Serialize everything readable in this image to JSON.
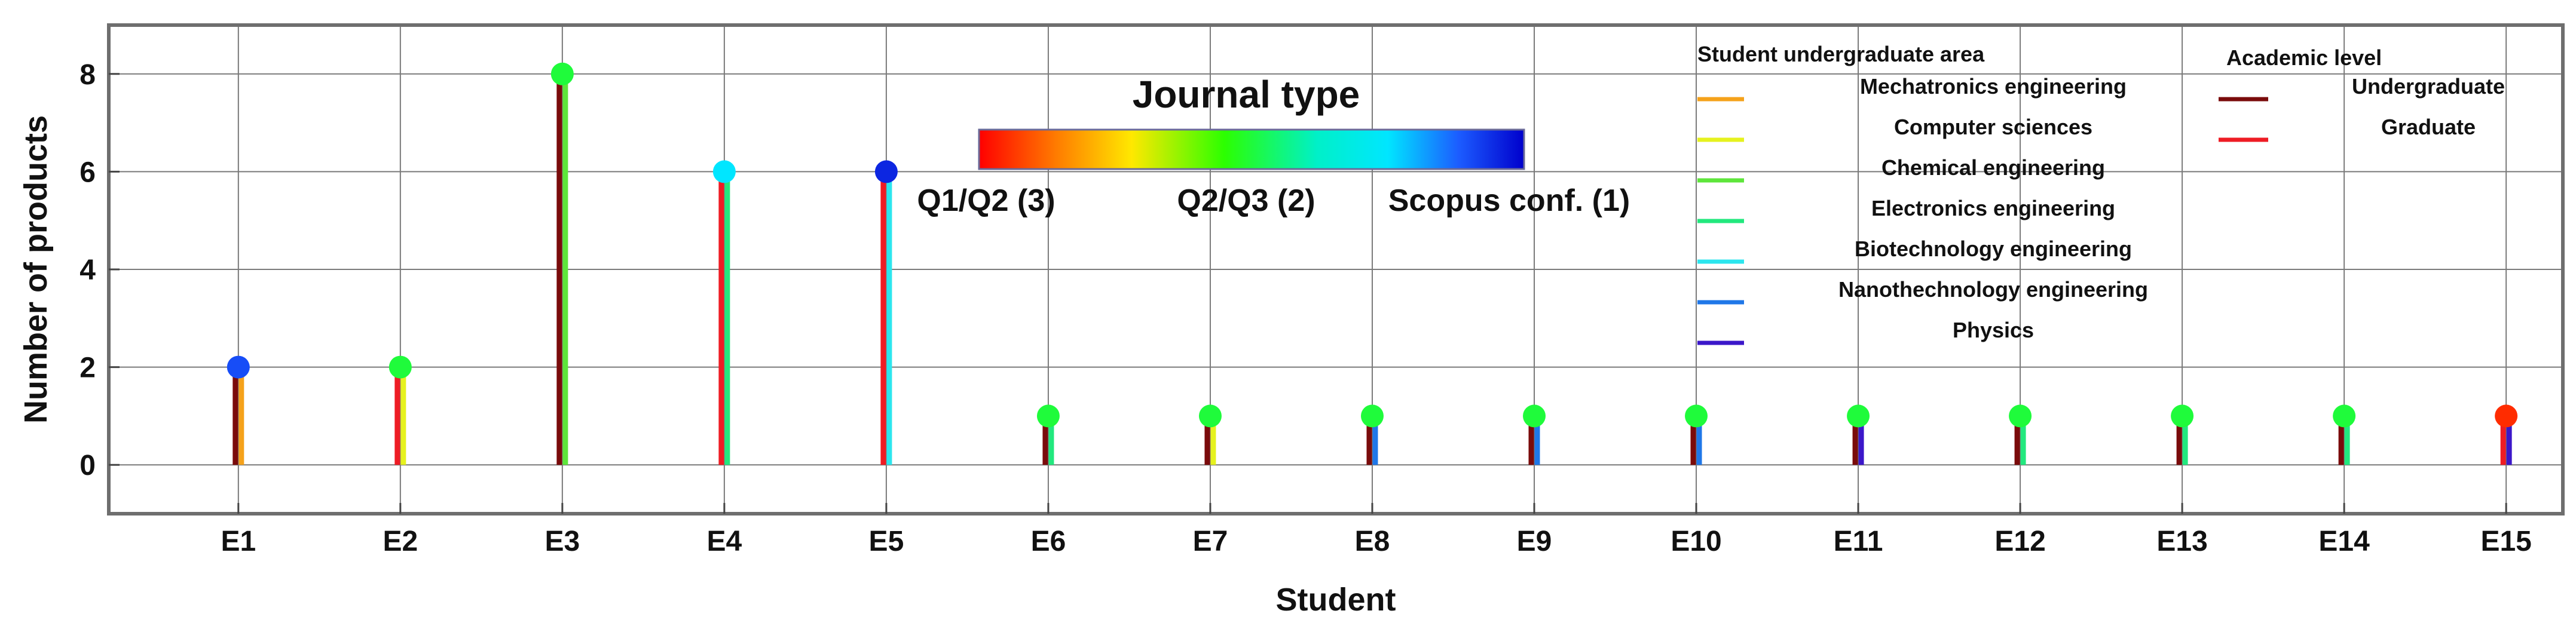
{
  "chart_data": {
    "type": "lollipop",
    "xlabel": "Student",
    "ylabel": "Number of products",
    "ylim": [
      -1,
      9
    ],
    "yticks": [
      0,
      2,
      4,
      6,
      8
    ],
    "grid": true,
    "categories": [
      "E1",
      "E2",
      "E3",
      "E4",
      "E5",
      "E6",
      "E7",
      "E8",
      "E9",
      "E10",
      "E11",
      "E12",
      "E13",
      "E14",
      "E15"
    ],
    "values": [
      2,
      2,
      8,
      6,
      6,
      1,
      1,
      1,
      1,
      1,
      1,
      1,
      1,
      1,
      1
    ],
    "journal_type": [
      1.2,
      2.0,
      2.0,
      1.5,
      1.1,
      2.0,
      2.0,
      2.0,
      2.0,
      2.0,
      2.0,
      2.0,
      2.0,
      2.0,
      2.9
    ],
    "academic_level": [
      "Undergraduate",
      "Graduate",
      "Undergraduate",
      "Graduate",
      "Graduate",
      "Undergraduate",
      "Undergraduate",
      "Undergraduate",
      "Undergraduate",
      "Undergraduate",
      "Undergraduate",
      "Undergraduate",
      "Undergraduate",
      "Undergraduate",
      "Graduate"
    ],
    "undergraduate_area": [
      "Mechatronics engineering",
      "Computer sciences",
      "Chemical engineering",
      "Electronics engineering",
      "Biotechnology engineering",
      "Electronics engineering",
      "Computer sciences",
      "Nanothechnology engineering",
      "Nanothechnology engineering",
      "Nanothechnology engineering",
      "Physics",
      "Electronics engineering",
      "Electronics engineering",
      "Electronics engineering",
      "Physics"
    ],
    "colorbar": {
      "title": "Journal type",
      "labels": [
        "Q1/Q2 (3)",
        "Q2/Q3 (2)",
        "Scopus conf. (1)"
      ],
      "range": [
        3,
        1
      ]
    },
    "legend_area": {
      "title": "Student undergraduate area",
      "items": [
        {
          "name": "Mechatronics engineering",
          "color": "#f5a21b"
        },
        {
          "name": "Computer sciences",
          "color": "#e6f21e"
        },
        {
          "name": "Chemical engineering",
          "color": "#5ee63b"
        },
        {
          "name": "Electronics engineering",
          "color": "#22e87e"
        },
        {
          "name": "Biotechnology engineering",
          "color": "#2ce6ee"
        },
        {
          "name": "Nanothechnology engineering",
          "color": "#1f77e8"
        },
        {
          "name": "Physics",
          "color": "#3b17c9"
        }
      ]
    },
    "legend_level": {
      "title": "Academic level",
      "items": [
        {
          "name": "Undergraduate",
          "color": "#7a0b0b"
        },
        {
          "name": "Graduate",
          "color": "#ee1c24"
        }
      ]
    }
  }
}
